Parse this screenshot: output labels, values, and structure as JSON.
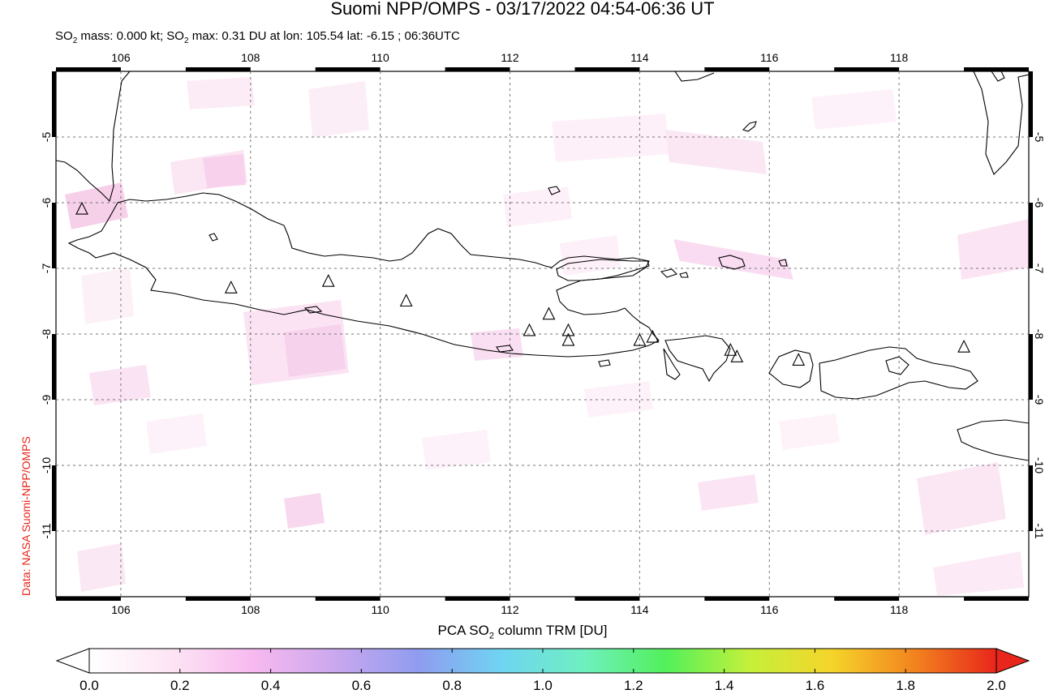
{
  "title": "Suomi NPP/OMPS - 03/17/2022 04:54-06:36 UT",
  "subtitle": {
    "p1": "SO",
    "sub": "2",
    "p2": " mass: 0.000 kt; SO",
    "sub2": "2",
    "p3": " max: 0.31 DU at lon: 105.54 lat: -6.15 ; 06:36UTC"
  },
  "credit": "Data: NASA Suomi-NPP/OMPS",
  "map": {
    "lon_range": [
      105,
      120
    ],
    "lat_range": [
      -12,
      -4
    ],
    "lon_ticks": [
      "106",
      "108",
      "110",
      "112",
      "114",
      "116",
      "118"
    ],
    "lat_ticks": [
      "-5",
      "-6",
      "-7",
      "-8",
      "-9",
      "-10",
      "-11"
    ],
    "grid": "dashed",
    "volcano_markers": [
      {
        "lon": 105.4,
        "lat": -6.1
      },
      {
        "lon": 107.7,
        "lat": -7.3
      },
      {
        "lon": 109.2,
        "lat": -7.2
      },
      {
        "lon": 110.4,
        "lat": -7.5
      },
      {
        "lon": 112.3,
        "lat": -7.95
      },
      {
        "lon": 112.6,
        "lat": -7.7
      },
      {
        "lon": 112.9,
        "lat": -7.95
      },
      {
        "lon": 112.9,
        "lat": -8.1
      },
      {
        "lon": 114.0,
        "lat": -8.1
      },
      {
        "lon": 114.2,
        "lat": -8.05
      },
      {
        "lon": 115.4,
        "lat": -8.25
      },
      {
        "lon": 115.5,
        "lat": -8.35
      },
      {
        "lon": 116.45,
        "lat": -8.4
      },
      {
        "lon": 119.0,
        "lat": -8.2
      }
    ]
  },
  "colorbar": {
    "title_p1": "PCA SO",
    "title_sub": "2",
    "title_p2": " column TRM [DU]",
    "ticks": [
      "0.0",
      "0.2",
      "0.4",
      "0.6",
      "0.8",
      "1.0",
      "1.2",
      "1.4",
      "1.6",
      "1.8",
      "2.0"
    ],
    "colors": [
      "#ffffff",
      "#fde4f4",
      "#f7b9ef",
      "#c9a7ee",
      "#8f9cf0",
      "#6fd4f2",
      "#6ff0c0",
      "#52f05a",
      "#c4f03a",
      "#f5d52a",
      "#f2841e",
      "#e8261c"
    ]
  }
}
